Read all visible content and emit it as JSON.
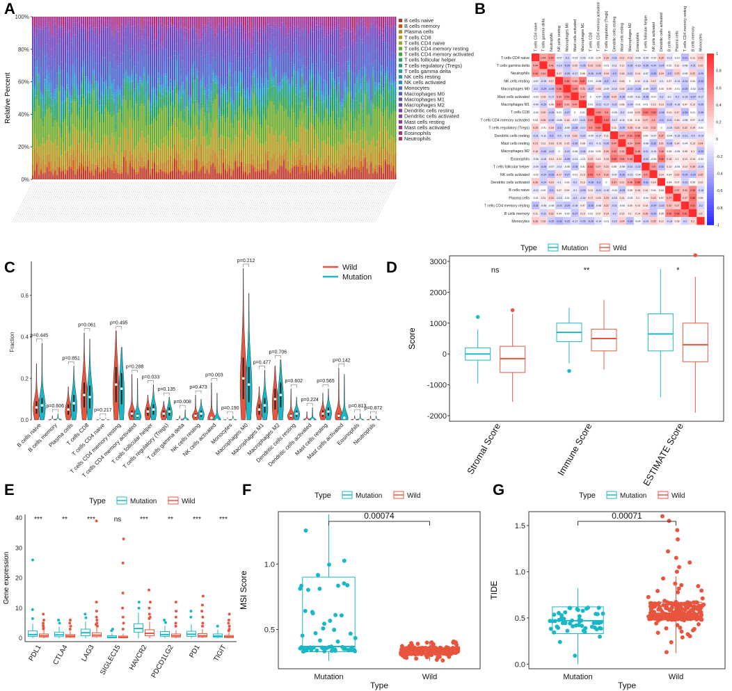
{
  "panels": {
    "A": "A",
    "B": "B",
    "C": "C",
    "D": "D",
    "E": "E",
    "F": "F",
    "G": "G"
  },
  "colors": {
    "mutation": "#1ab8c6",
    "wild": "#e8553e"
  },
  "chart_data": [
    {
      "id": "A",
      "type": "bar",
      "stacked": true,
      "ylabel": "Relative Percent",
      "yticks": [
        "0%",
        "20%",
        "40%",
        "60%",
        "80%",
        "100%"
      ],
      "n_samples": 180,
      "legend": [
        "B cells naive",
        "B cells memory",
        "Plasma cells",
        "T cells CD8",
        "T cells CD4 naive",
        "T cells CD4 memory resting",
        "T cells CD4 memory activated",
        "T cells follicular helper",
        "T cells regulatory (Tregs)",
        "T cells gamma delta",
        "NK cells resting",
        "NK cells activated",
        "Monocytes",
        "Macrophages M0",
        "Macrophages M1",
        "Macrophages M2",
        "Dendritic cells resting",
        "Dendritic cells activated",
        "Mast cells resting",
        "Mast cells activated",
        "Eosinophils",
        "Neutrophils"
      ],
      "legend_colors": [
        "#c0392b",
        "#d35400",
        "#c08020",
        "#b39b1f",
        "#8fae1a",
        "#6caa2a",
        "#3ca33c",
        "#27a05a",
        "#1fa080",
        "#1e9ea8",
        "#2196c9",
        "#2a84d4",
        "#3b6fd4",
        "#4a5ed0",
        "#5a4fc8",
        "#6a45c0",
        "#7b3fb6",
        "#8c38aa",
        "#9c339c",
        "#a8308c",
        "#b02e78",
        "#b62c62"
      ],
      "mean_fractions": [
        0.06,
        0.01,
        0.06,
        0.13,
        0.01,
        0.17,
        0.02,
        0.06,
        0.05,
        0.01,
        0.03,
        0.02,
        0.01,
        0.14,
        0.05,
        0.12,
        0.02,
        0.01,
        0.04,
        0.02,
        0.0,
        0.0
      ]
    },
    {
      "id": "B",
      "type": "heatmap",
      "column_labels": [
        "T cells CD4 naive",
        "T cells gamma delta",
        "Neutrophils",
        "NK cells resting",
        "Macrophages M0",
        "Mast cells activated",
        "Macrophages M1",
        "T cells CD8",
        "T cells CD4 memory activated",
        "T cells regulatory (Tregs)",
        "Dendritic cells resting",
        "Mast cells resting",
        "Macrophages M2",
        "Eosinophils",
        "T cells follicular helper",
        "NK cells activated",
        "Dendritic cells activated",
        "B cells naive",
        "Plasma cells",
        "T cells CD4 memory resting",
        "B cells memory",
        "Monocytes"
      ],
      "row_labels": [
        "T cells CD4 naive",
        "T cells gamma delta",
        "Neutrophils",
        "NK cells resting",
        "Macrophages M0",
        "Mast cells activated",
        "Macrophages M1",
        "T cells CD8",
        "T cells CD4 memory activated",
        "T cells regulatory (Tregs)",
        "Dendritic cells resting",
        "Mast cells resting",
        "Macrophages M2",
        "Eosinophils",
        "T cells follicular helper",
        "NK cells activated",
        "Dendritic cells activated",
        "B cells naive",
        "Plasma cells",
        "T cells CD4 memory resting",
        "B cells memory",
        "Monocytes"
      ],
      "colorbar_ticks": [
        "1",
        "0.8",
        "0.6",
        "0.4",
        "0.2",
        "0",
        "-0.2",
        "-0.4",
        "-0.6",
        "-0.8",
        "-1"
      ],
      "vrange": [
        -1,
        1
      ]
    },
    {
      "id": "C",
      "type": "violin",
      "ylabel": "Fraction",
      "ylim": [
        0,
        0.75
      ],
      "yticks": [
        "0.0",
        "0.2",
        "0.4",
        "0.6"
      ],
      "legend": [
        "Wild",
        "Mutation"
      ],
      "categories": [
        "B cells naive",
        "B cells memory",
        "Plasma cells",
        "T cells CD8",
        "T cells CD4 naive",
        "T cells CD4 memory resting",
        "T cells CD4 memory activated",
        "T cells follicular helper",
        "T cells regulatory (Tregs)",
        "T cells gamma delta",
        "NK cells resting",
        "NK cells activated",
        "Monocytes",
        "Macrophages M0",
        "Macrophages M1",
        "Macrophages M2",
        "Dendritic cells resting",
        "Dendritic cells activated",
        "Mast cells resting",
        "Mast cells activated",
        "Eosinophils",
        "Neutrophils"
      ],
      "pvalues": [
        "p=0.445",
        "p=0.606",
        "p=0.851",
        "p=0.061",
        "p=0.217",
        "p=0.495",
        "p=0.288",
        "p=0.033",
        "p=0.135",
        "p=0.008",
        "p=0.473",
        "p=0.003",
        "p=0.190",
        "p=0.212",
        "p=0.477",
        "p=0.706",
        "p=0.602",
        "p=0.224",
        "p=0.565",
        "p=0.142",
        "p=0.813",
        "p=0.872"
      ],
      "wild_max": [
        0.27,
        0.02,
        0.16,
        0.42,
        0.01,
        0.43,
        0.22,
        0.12,
        0.09,
        0.02,
        0.12,
        0.18,
        0.01,
        0.73,
        0.16,
        0.26,
        0.15,
        0.04,
        0.13,
        0.25,
        0.02,
        0.02
      ],
      "mutation_max": [
        0.37,
        0.03,
        0.26,
        0.39,
        0.01,
        0.35,
        0.2,
        0.17,
        0.11,
        0.05,
        0.1,
        0.13,
        0.02,
        0.61,
        0.24,
        0.29,
        0.11,
        0.06,
        0.15,
        0.22,
        0.03,
        0.02
      ],
      "wild_median": [
        0.06,
        0.0,
        0.05,
        0.12,
        0.0,
        0.17,
        0.03,
        0.04,
        0.03,
        0.0,
        0.02,
        0.01,
        0.0,
        0.2,
        0.05,
        0.1,
        0.02,
        0.0,
        0.03,
        0.02,
        0.0,
        0.0
      ],
      "mutation_median": [
        0.07,
        0.0,
        0.08,
        0.11,
        0.0,
        0.15,
        0.02,
        0.05,
        0.04,
        0.0,
        0.03,
        0.0,
        0.0,
        0.17,
        0.07,
        0.12,
        0.03,
        0.0,
        0.04,
        0.01,
        0.0,
        0.0
      ]
    },
    {
      "id": "D",
      "type": "box",
      "legend_title": "Type",
      "legend": [
        "Mutation",
        "Wild"
      ],
      "ylabel": "Score",
      "ylim": [
        -2000,
        3000
      ],
      "yticks": [
        "-2000",
        "-1000",
        "0",
        "1000",
        "2000",
        "3000"
      ],
      "categories": [
        "Stromal Score",
        "Immune Score",
        "ESTIMATE Score"
      ],
      "significance": [
        "ns",
        "**",
        "*"
      ],
      "mutation": [
        [
          -950,
          -200,
          0,
          200,
          800
        ],
        [
          -300,
          400,
          700,
          1000,
          1500
        ],
        [
          -1400,
          100,
          650,
          1300,
          2750
        ]
      ],
      "wild": [
        [
          -1550,
          -600,
          -150,
          250,
          1300
        ],
        [
          -500,
          100,
          500,
          800,
          1750
        ],
        [
          -1900,
          -250,
          300,
          1000,
          2500
        ]
      ],
      "outliers_mutation": [
        [
          1200
        ],
        [
          -550
        ],
        []
      ],
      "outliers_wild": [
        [
          1420
        ],
        [],
        [
          3200
        ]
      ]
    },
    {
      "id": "E",
      "type": "box",
      "legend_title": "Type",
      "legend": [
        "Mutation",
        "Wild"
      ],
      "ylabel": "Gene expression",
      "ylim": [
        0,
        40
      ],
      "yticks": [
        "0",
        "10",
        "20",
        "30",
        "40"
      ],
      "categories": [
        "PDL1",
        "CTLA4",
        "LAG3",
        "SIGLEC15",
        "HAVCR2",
        "PDCD1LG2",
        "PD1",
        "TIGIT"
      ],
      "significance": [
        "***",
        "**",
        "***",
        "ns",
        "***",
        "**",
        "***",
        "***"
      ],
      "mutation": [
        [
          0,
          0.6,
          1.2,
          2.4,
          4.8
        ],
        [
          0,
          0.5,
          1.1,
          2.0,
          3.8
        ],
        [
          0,
          0.8,
          1.8,
          3.0,
          5.5
        ],
        [
          0,
          0.1,
          0.3,
          0.8,
          1.6
        ],
        [
          0,
          2.0,
          3.2,
          4.8,
          8.5
        ],
        [
          0,
          0.6,
          1.2,
          2.2,
          4.2
        ],
        [
          0,
          0.6,
          1.3,
          2.3,
          4.6
        ],
        [
          0,
          0.3,
          0.7,
          1.4,
          2.8
        ]
      ],
      "wild": [
        [
          0,
          0.4,
          0.8,
          1.4,
          2.8
        ],
        [
          0,
          0.3,
          0.7,
          1.2,
          2.4
        ],
        [
          0,
          0.5,
          1.0,
          1.8,
          3.5
        ],
        [
          0,
          0.1,
          0.3,
          0.7,
          1.5
        ],
        [
          0,
          0.8,
          1.6,
          2.8,
          5.5
        ],
        [
          0,
          0.4,
          0.8,
          1.4,
          2.6
        ],
        [
          0,
          0.4,
          0.8,
          1.5,
          3.0
        ],
        [
          0,
          0.2,
          0.5,
          0.9,
          1.9
        ]
      ],
      "outliers_mutation": [
        [
          26,
          9.5,
          6.5
        ],
        [
          6,
          5
        ],
        [
          8,
          6.8
        ],
        [
          3,
          2.5
        ],
        [
          12,
          10
        ],
        [
          6,
          5.2
        ],
        [
          9,
          7
        ],
        [
          4
        ]
      ],
      "outliers_wild": [
        [
          8,
          6,
          5,
          4.2,
          3.5,
          3.1
        ],
        [
          6,
          5,
          4,
          3
        ],
        [
          39,
          12,
          9,
          7,
          6,
          5,
          4.5,
          4
        ],
        [
          33,
          25,
          15,
          10,
          7,
          5,
          3
        ],
        [
          16,
          12,
          10,
          8,
          7,
          6.5
        ],
        [
          12,
          9,
          7,
          5,
          4
        ],
        [
          14,
          11,
          9,
          7,
          5,
          4
        ],
        [
          8,
          6,
          5,
          4,
          3,
          2.5
        ]
      ]
    },
    {
      "id": "F",
      "type": "box",
      "legend_title": "Type",
      "legend": [
        "Mutation",
        "Wild"
      ],
      "xlabel": "Type",
      "ylabel": "MSI Score",
      "ylim": [
        0.2,
        1.4
      ],
      "yticks": [
        "0.5",
        "1.0"
      ],
      "categories": [
        "Mutation",
        "Wild"
      ],
      "pvalue": "0.00074",
      "mutation": [
        0.26,
        0.33,
        0.37,
        0.9,
        1.38
      ],
      "wild": [
        0.26,
        0.31,
        0.34,
        0.36,
        0.41
      ]
    },
    {
      "id": "G",
      "type": "box",
      "legend_title": "Type",
      "legend": [
        "Mutation",
        "Wild"
      ],
      "xlabel": "Type",
      "ylabel": "TIDE",
      "ylim": [
        -0.05,
        1.65
      ],
      "yticks": [
        "0.0",
        "0.5",
        "1.0",
        "1.5"
      ],
      "categories": [
        "Mutation",
        "Wild"
      ],
      "pvalue": "0.00071",
      "mutation": [
        0.0,
        0.33,
        0.47,
        0.62,
        0.82
      ],
      "wild": [
        0.12,
        0.48,
        0.55,
        0.67,
        0.95
      ],
      "outliers_wild": [
        1.0,
        1.05,
        1.1,
        1.15,
        1.22,
        1.35,
        1.45,
        1.55,
        1.6
      ]
    }
  ]
}
